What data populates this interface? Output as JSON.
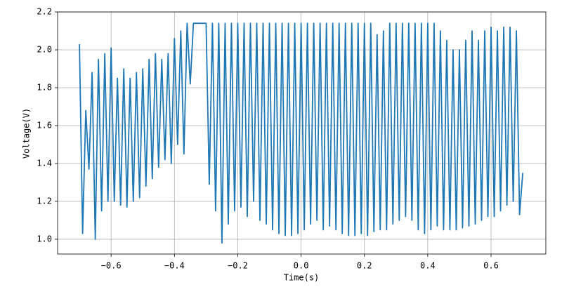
{
  "chart_data": {
    "type": "line",
    "xlabel": "Time(s)",
    "ylabel": "Voltage(V)",
    "color": "#1f77b4",
    "grid": true,
    "xlim": [
      -0.769,
      0.773
    ],
    "ylim": [
      0.922,
      2.2
    ],
    "xticks": [
      {
        "value": -0.6,
        "label": "−0.6"
      },
      {
        "value": -0.4,
        "label": "−0.4"
      },
      {
        "value": -0.2,
        "label": "−0.2"
      },
      {
        "value": 0,
        "label": "0.0"
      },
      0.2,
      0.4,
      0.6
    ],
    "yticks": [
      {
        "value": 1,
        "label": "1.0"
      },
      1.2,
      1.4,
      1.6,
      1.8,
      {
        "value": 2,
        "label": "2.0"
      },
      2.2
    ],
    "x": [
      -0.7,
      -0.69,
      -0.68,
      -0.67,
      -0.66,
      -0.65,
      -0.64,
      -0.63,
      -0.62,
      -0.61,
      -0.6,
      -0.59,
      -0.58,
      -0.57,
      -0.56,
      -0.55,
      -0.54,
      -0.53,
      -0.52,
      -0.51,
      -0.5,
      -0.49,
      -0.48,
      -0.47,
      -0.46,
      -0.45,
      -0.44,
      -0.43,
      -0.42,
      -0.41,
      -0.4,
      -0.39,
      -0.38,
      -0.37,
      -0.36,
      -0.35,
      -0.34,
      -0.33,
      -0.32,
      -0.31,
      -0.3,
      -0.29,
      -0.28,
      -0.27,
      -0.26,
      -0.25,
      -0.24,
      -0.23,
      -0.22,
      -0.21,
      -0.2,
      -0.19,
      -0.18,
      -0.17,
      -0.16,
      -0.15,
      -0.14,
      -0.13,
      -0.12,
      -0.11,
      -0.1,
      -0.09,
      -0.08,
      -0.07,
      -0.06,
      -0.05,
      -0.04,
      -0.03,
      -0.02,
      -0.01,
      0.0,
      0.01,
      0.02,
      0.03,
      0.04,
      0.05,
      0.06,
      0.07,
      0.08,
      0.09,
      0.1,
      0.11,
      0.12,
      0.13,
      0.14,
      0.15,
      0.16,
      0.17,
      0.18,
      0.19,
      0.2,
      0.21,
      0.22,
      0.23,
      0.24,
      0.25,
      0.26,
      0.27,
      0.28,
      0.29,
      0.3,
      0.31,
      0.32,
      0.33,
      0.34,
      0.35,
      0.36,
      0.37,
      0.38,
      0.39,
      0.4,
      0.41,
      0.42,
      0.43,
      0.44,
      0.45,
      0.46,
      0.47,
      0.48,
      0.49,
      0.5,
      0.51,
      0.52,
      0.53,
      0.54,
      0.55,
      0.56,
      0.57,
      0.58,
      0.59,
      0.6,
      0.61,
      0.62,
      0.63,
      0.64,
      0.65,
      0.66,
      0.67,
      0.68,
      0.69,
      0.7
    ],
    "values": [
      2.03,
      1.03,
      1.68,
      1.37,
      1.88,
      1.0,
      1.95,
      1.15,
      1.98,
      1.2,
      2.01,
      1.2,
      1.85,
      1.18,
      1.9,
      1.17,
      1.85,
      1.2,
      1.88,
      1.22,
      1.9,
      1.28,
      1.95,
      1.32,
      1.98,
      1.38,
      1.95,
      1.42,
      1.98,
      1.4,
      2.06,
      1.5,
      2.1,
      1.45,
      2.14,
      1.82,
      2.14,
      2.14,
      2.14,
      2.14,
      2.14,
      1.29,
      2.14,
      1.15,
      2.14,
      0.98,
      2.14,
      1.08,
      2.14,
      1.15,
      2.14,
      1.17,
      2.14,
      1.12,
      2.14,
      1.2,
      2.14,
      1.1,
      2.14,
      1.08,
      2.14,
      1.05,
      2.14,
      1.03,
      2.14,
      1.02,
      2.14,
      1.02,
      2.14,
      1.03,
      2.14,
      1.05,
      2.14,
      1.08,
      2.14,
      1.1,
      2.14,
      1.05,
      2.14,
      1.07,
      2.14,
      1.05,
      2.14,
      1.03,
      2.14,
      1.02,
      2.14,
      1.02,
      2.14,
      1.03,
      2.14,
      1.02,
      2.14,
      1.04,
      2.08,
      1.05,
      2.1,
      1.05,
      2.14,
      1.08,
      2.14,
      1.1,
      2.14,
      1.12,
      2.14,
      1.1,
      2.14,
      1.05,
      2.14,
      1.03,
      2.14,
      1.05,
      2.14,
      1.07,
      2.1,
      1.05,
      2.05,
      1.05,
      2.0,
      1.05,
      2.0,
      1.06,
      2.05,
      1.07,
      2.1,
      1.08,
      2.05,
      1.1,
      2.1,
      1.12,
      2.12,
      1.12,
      2.1,
      1.15,
      2.12,
      1.18,
      2.12,
      1.2,
      2.1,
      1.13,
      1.35
    ]
  }
}
